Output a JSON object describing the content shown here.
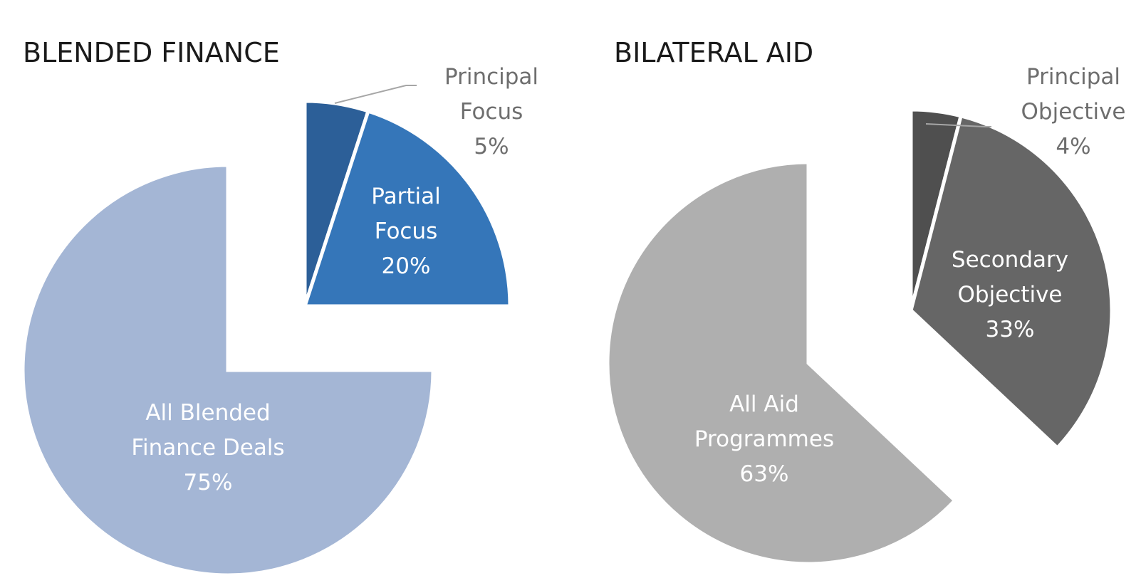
{
  "chart_data": [
    {
      "type": "pie",
      "title": "BLENDED FINANCE",
      "slices": [
        {
          "label_lines": [
            "Principal",
            "Focus",
            "5%"
          ],
          "value": 5,
          "color": "#2c5f98",
          "label_color": "#6e6e6e",
          "label_position": "outside"
        },
        {
          "label_lines": [
            "Partial",
            "Focus",
            "20%"
          ],
          "value": 20,
          "color": "#3576b9",
          "label_color": "#ffffff",
          "label_position": "inside"
        },
        {
          "label_lines": [
            "All Blended",
            "Finance Deals",
            "75%"
          ],
          "value": 75,
          "color": "#a4b6d5",
          "label_color": "#ffffff",
          "label_position": "inside"
        }
      ],
      "exploded": [
        "Principal Focus",
        "Partial Focus"
      ]
    },
    {
      "type": "pie",
      "title": "BILATERAL AID",
      "slices": [
        {
          "label_lines": [
            "Principal",
            "Objective",
            "4%"
          ],
          "value": 4,
          "color": "#4f4f4f",
          "label_color": "#6e6e6e",
          "label_position": "outside"
        },
        {
          "label_lines": [
            "Secondary",
            "Objective",
            "33%"
          ],
          "value": 33,
          "color": "#666666",
          "label_color": "#ffffff",
          "label_position": "inside"
        },
        {
          "label_lines": [
            "All Aid",
            "Programmes",
            "63%"
          ],
          "value": 63,
          "color": "#afafaf",
          "label_color": "#ffffff",
          "label_position": "inside"
        }
      ],
      "exploded": [
        "Principal Objective",
        "Secondary Objective"
      ]
    }
  ]
}
